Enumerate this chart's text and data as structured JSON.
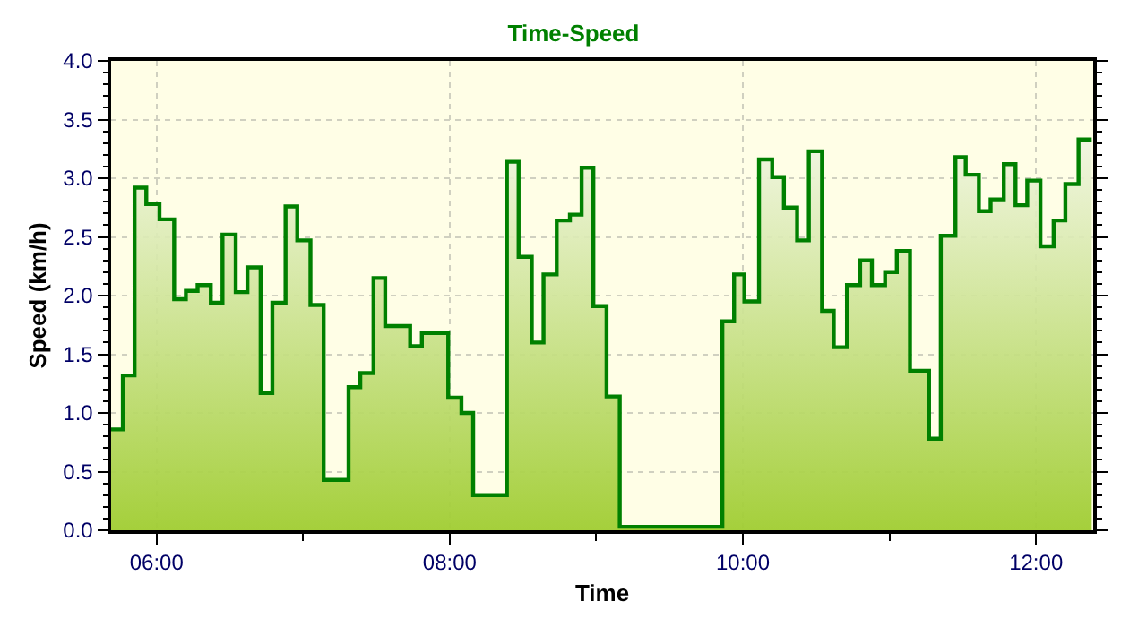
{
  "chart_data": {
    "type": "area",
    "title": "Time-Speed",
    "xlabel": "Time",
    "ylabel": "Speed (km/h)",
    "x": [
      5.69,
      5.77,
      5.77,
      5.85,
      5.85,
      5.93,
      5.93,
      6.02,
      6.02,
      6.12,
      6.12,
      6.2,
      6.2,
      6.28,
      6.28,
      6.37,
      6.37,
      6.45,
      6.45,
      6.54,
      6.54,
      6.62,
      6.62,
      6.71,
      6.71,
      6.79,
      6.79,
      6.88,
      6.88,
      6.96,
      6.96,
      7.05,
      7.05,
      7.14,
      7.14,
      7.31,
      7.31,
      7.39,
      7.39,
      7.48,
      7.48,
      7.56,
      7.56,
      7.73,
      7.73,
      7.81,
      7.81,
      7.99,
      7.99,
      8.08,
      8.08,
      8.16,
      8.16,
      8.39,
      8.39,
      8.47,
      8.47,
      8.56,
      8.56,
      8.64,
      8.64,
      8.73,
      8.73,
      8.82,
      8.82,
      8.9,
      8.9,
      8.98,
      8.98,
      9.07,
      9.07,
      9.16,
      9.16,
      9.86,
      9.86,
      9.94,
      9.94,
      10.01,
      10.01,
      10.11,
      10.11,
      10.2,
      10.2,
      10.28,
      10.28,
      10.37,
      10.37,
      10.45,
      10.45,
      10.54,
      10.54,
      10.62,
      10.62,
      10.71,
      10.71,
      10.8,
      10.8,
      10.88,
      10.88,
      10.97,
      10.97,
      11.05,
      11.05,
      11.14,
      11.14,
      11.27,
      11.27,
      11.35,
      11.35,
      11.45,
      11.45,
      11.52,
      11.52,
      11.61,
      11.61,
      11.69,
      11.69,
      11.78,
      11.78,
      11.86,
      11.86,
      11.94,
      11.94,
      12.03,
      12.03,
      12.12,
      12.12,
      12.2,
      12.2,
      12.29,
      12.29,
      12.38
    ],
    "series": [
      {
        "color": "#008000",
        "values": [
          0.86,
          0.86,
          1.32,
          1.32,
          2.92,
          2.92,
          2.78,
          2.78,
          2.65,
          2.65,
          1.97,
          1.97,
          2.04,
          2.04,
          2.09,
          2.09,
          1.94,
          1.94,
          2.52,
          2.52,
          2.03,
          2.03,
          2.24,
          2.24,
          1.17,
          1.17,
          1.94,
          1.94,
          2.76,
          2.76,
          2.47,
          2.47,
          1.92,
          1.92,
          0.43,
          0.43,
          1.22,
          1.22,
          1.34,
          1.34,
          2.15,
          2.15,
          1.74,
          1.74,
          1.57,
          1.57,
          1.68,
          1.68,
          1.13,
          1.13,
          1.0,
          1.0,
          0.3,
          0.3,
          3.14,
          3.14,
          2.33,
          2.33,
          1.6,
          1.6,
          2.18,
          2.18,
          2.64,
          2.64,
          2.69,
          2.69,
          3.09,
          3.09,
          1.91,
          1.91,
          1.14,
          1.14,
          0.03,
          0.03,
          1.78,
          1.78,
          2.18,
          2.18,
          1.95,
          1.95,
          3.16,
          3.16,
          3.01,
          3.01,
          2.75,
          2.75,
          2.47,
          2.47,
          3.23,
          3.23,
          1.87,
          1.87,
          1.56,
          1.56,
          2.09,
          2.09,
          2.3,
          2.3,
          2.09,
          2.09,
          2.2,
          2.2,
          2.38,
          2.38,
          1.36,
          1.36,
          0.78,
          0.78,
          2.51,
          2.51,
          3.18,
          3.18,
          3.03,
          3.03,
          2.72,
          2.72,
          2.82,
          2.82,
          3.12,
          3.12,
          2.77,
          2.77,
          2.98,
          2.98,
          2.42,
          2.42,
          2.64,
          2.64,
          2.95,
          2.95,
          3.33,
          3.33
        ]
      }
    ],
    "xlim": [
      5.69,
      12.39
    ],
    "xticks": [
      {
        "value": 6,
        "label": "06:00"
      },
      {
        "value": 8,
        "label": "08:00"
      },
      {
        "value": 10,
        "label": "10:00"
      },
      {
        "value": 12,
        "label": "12:00"
      }
    ],
    "ylim": [
      0,
      4
    ],
    "yticks": [
      {
        "value": 0,
        "label": "0.0"
      },
      {
        "value": 0.5,
        "label": "0.5"
      },
      {
        "value": 1,
        "label": "1.0"
      },
      {
        "value": 1.5,
        "label": "1.5"
      },
      {
        "value": 2,
        "label": "2.0"
      },
      {
        "value": 2.5,
        "label": "2.5"
      },
      {
        "value": 3,
        "label": "3.0"
      },
      {
        "value": 3.5,
        "label": "3.5"
      },
      {
        "value": 4,
        "label": "4.0"
      }
    ],
    "grid": true,
    "line_style": "solid"
  }
}
